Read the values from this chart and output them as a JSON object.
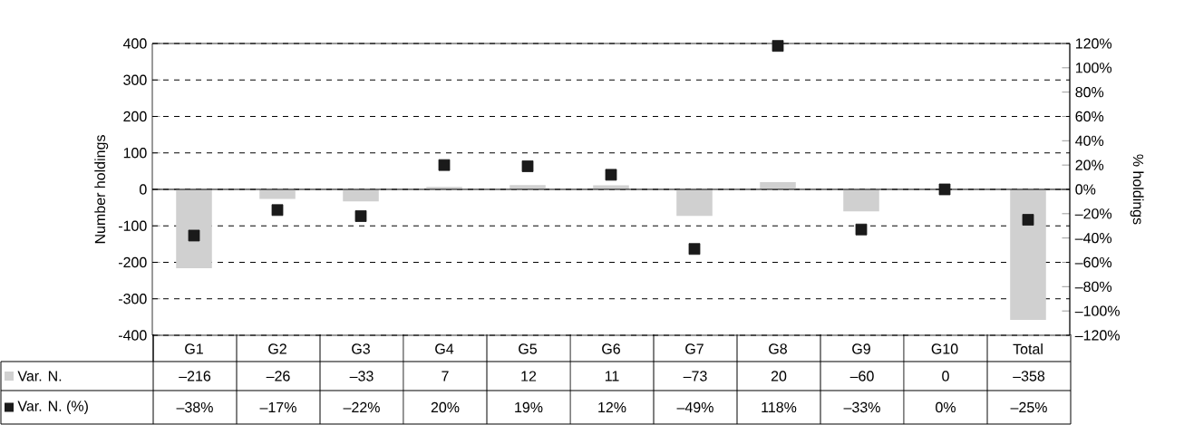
{
  "chart_data": {
    "type": "bar",
    "categories": [
      "G1",
      "G2",
      "G3",
      "G4",
      "G5",
      "G6",
      "G7",
      "G8",
      "G9",
      "G10",
      "Total"
    ],
    "ylabel": "Number holdings",
    "y2label": "% holdings",
    "ylim": [
      -400,
      400
    ],
    "yticks": [
      -400,
      -300,
      -200,
      -100,
      0,
      100,
      200,
      300,
      400
    ],
    "y2lim": [
      -120,
      120
    ],
    "y2ticks": [
      {
        "value": -120,
        "label": "–120%"
      },
      {
        "value": -100,
        "label": "–100%"
      },
      {
        "value": -80,
        "label": "–80%"
      },
      {
        "value": -60,
        "label": "–60%"
      },
      {
        "value": -40,
        "label": "–40%"
      },
      {
        "value": -20,
        "label": "–20%"
      },
      {
        "value": 0,
        "label": "0%"
      },
      {
        "value": 20,
        "label": "20%"
      },
      {
        "value": 40,
        "label": "40%"
      },
      {
        "value": 60,
        "label": "60%"
      },
      {
        "value": 80,
        "label": "80%"
      },
      {
        "value": 100,
        "label": "100%"
      },
      {
        "value": 120,
        "label": "120%"
      }
    ],
    "grid": "y",
    "legend": "bottom",
    "series": [
      {
        "name": "Var. N.",
        "color": "#d0d0d0",
        "values": [
          -216,
          -26,
          -33,
          7,
          12,
          11,
          -73,
          20,
          -60,
          0,
          -358
        ],
        "value_labels": [
          "–216",
          "–26",
          "–33",
          "7",
          "12",
          "11",
          "–73",
          "20",
          "–60",
          "0",
          "–358"
        ]
      },
      {
        "name": "Var. N. (%)",
        "type": "scatter",
        "axis": "y2",
        "marker": "square",
        "color": "#1a1a1a",
        "values": [
          -38,
          -17,
          -22,
          20,
          19,
          12,
          -49,
          118,
          -33,
          0,
          -25
        ],
        "value_labels": [
          "–38%",
          "–17%",
          "–22%",
          "20%",
          "19%",
          "12%",
          "–49%",
          "118%",
          "–33%",
          "0%",
          "–25%"
        ]
      }
    ]
  }
}
